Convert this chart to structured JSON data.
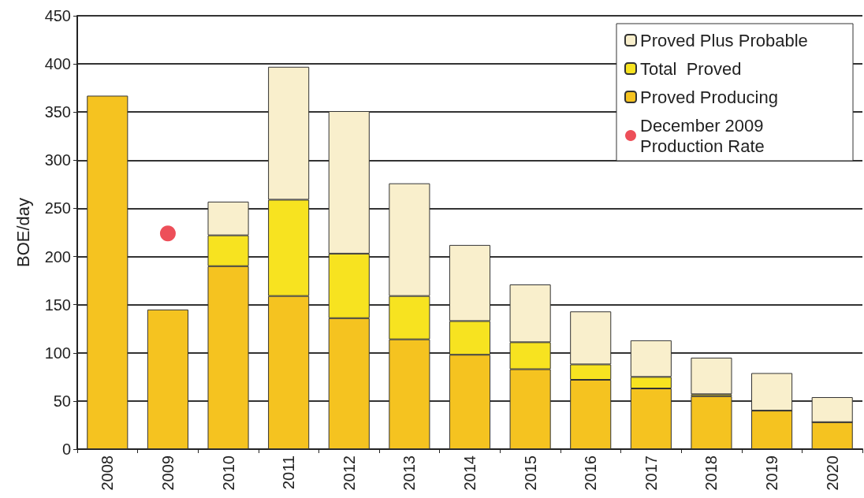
{
  "chart_data": {
    "type": "bar",
    "stacked": true,
    "ylabel": "BOE/day",
    "categories": [
      "2008",
      "2009",
      "2010",
      "2011",
      "2012",
      "2013",
      "2014",
      "2015",
      "2016",
      "2017",
      "2018",
      "2019",
      "2020"
    ],
    "series": [
      {
        "name": "Proved Producing",
        "color": "#f5c320",
        "values": [
          367,
          145,
          190,
          159,
          136,
          114,
          98,
          83,
          72,
          63,
          55,
          40,
          28
        ]
      },
      {
        "name": "Total  Proved",
        "color": "#f7e320",
        "values": [
          null,
          null,
          32,
          100,
          67,
          45,
          35,
          28,
          16,
          12,
          2,
          0,
          0
        ]
      },
      {
        "name": "Proved Plus Probable",
        "color": "#f9efcc",
        "values": [
          null,
          null,
          35,
          138,
          148,
          117,
          79,
          60,
          55,
          38,
          38,
          39,
          26
        ]
      },
      {
        "name": "December 2009 Production Rate",
        "type": "scatter",
        "color": "#e8232f",
        "values": [
          null,
          224,
          null,
          null,
          null,
          null,
          null,
          null,
          null,
          null,
          null,
          null,
          null
        ],
        "marker": "circle"
      }
    ],
    "ylim": [
      0,
      450
    ],
    "yticks": [
      0,
      50,
      100,
      150,
      200,
      250,
      300,
      350,
      400,
      450
    ],
    "grid": "y",
    "legend": "top right"
  }
}
